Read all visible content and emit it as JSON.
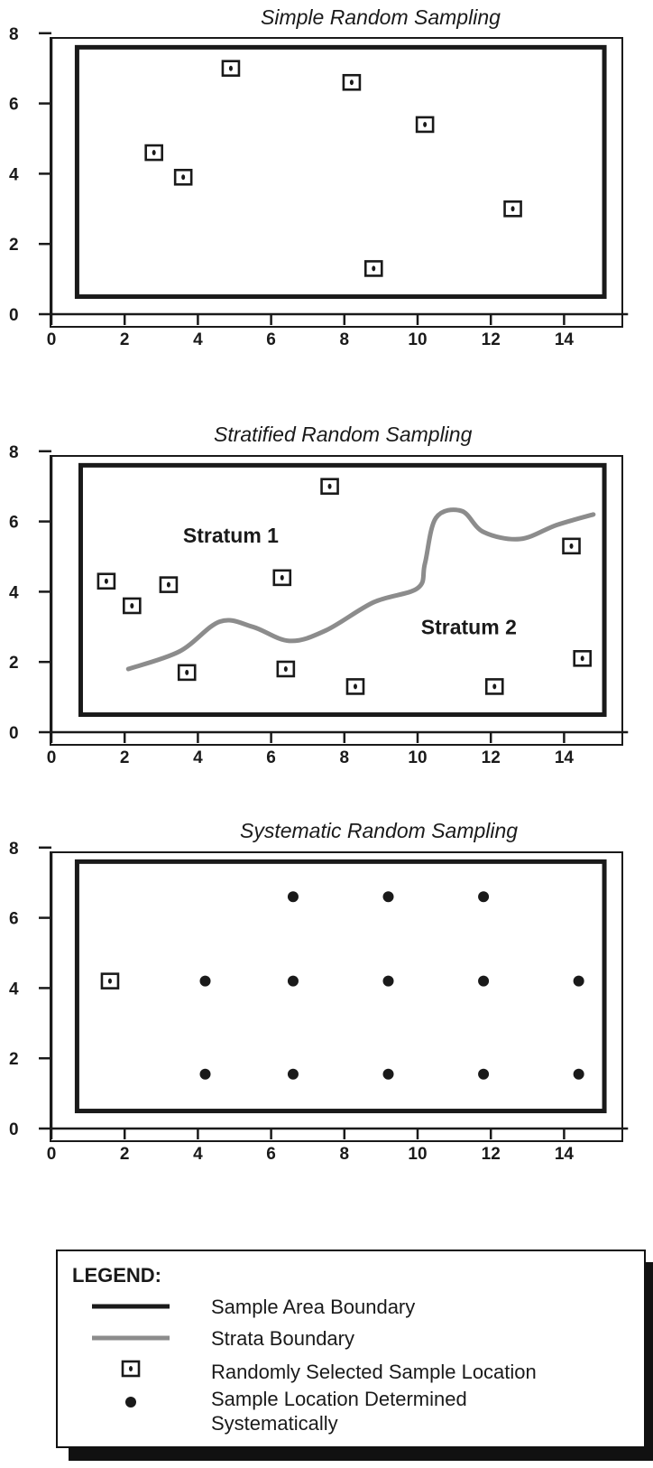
{
  "chart_data": [
    {
      "type": "scatter",
      "title": "Simple Random Sampling",
      "xlim": [
        0,
        15.5
      ],
      "ylim": [
        0,
        8
      ],
      "xticks": [
        0,
        2,
        4,
        6,
        8,
        10,
        12,
        14
      ],
      "yticks": [
        0,
        2,
        4,
        6,
        8
      ],
      "sample_area": {
        "x": [
          0.7,
          15.1
        ],
        "y": [
          0.5,
          7.6
        ]
      },
      "random_points": [
        [
          2.8,
          4.6
        ],
        [
          3.6,
          3.9
        ],
        [
          4.9,
          7.0
        ],
        [
          8.2,
          6.6
        ],
        [
          10.2,
          5.4
        ],
        [
          12.6,
          3.0
        ],
        [
          8.8,
          1.3
        ]
      ],
      "systematic_points": [],
      "strata_boundary": [],
      "labels": []
    },
    {
      "type": "scatter",
      "title": "Stratified Random Sampling",
      "xlim": [
        0,
        15.5
      ],
      "ylim": [
        0,
        8
      ],
      "xticks": [
        0,
        2,
        4,
        6,
        8,
        10,
        12,
        14
      ],
      "yticks": [
        0,
        2,
        4,
        6,
        8
      ],
      "sample_area": {
        "x": [
          0.8,
          15.1
        ],
        "y": [
          0.5,
          7.6
        ]
      },
      "random_points": [
        [
          1.5,
          4.3
        ],
        [
          2.2,
          3.6
        ],
        [
          3.2,
          4.2
        ],
        [
          6.3,
          4.4
        ],
        [
          7.6,
          7.0
        ],
        [
          14.2,
          5.3
        ],
        [
          3.7,
          1.7
        ],
        [
          6.4,
          1.8
        ],
        [
          8.3,
          1.3
        ],
        [
          12.1,
          1.3
        ],
        [
          14.5,
          2.1
        ]
      ],
      "systematic_points": [],
      "strata_boundary": [
        [
          2.1,
          1.8
        ],
        [
          3.5,
          2.3
        ],
        [
          4.6,
          3.15
        ],
        [
          5.5,
          3.0
        ],
        [
          6.5,
          2.6
        ],
        [
          7.5,
          2.9
        ],
        [
          8.8,
          3.7
        ],
        [
          10.0,
          4.1
        ],
        [
          10.2,
          4.8
        ],
        [
          10.5,
          6.1
        ],
        [
          11.2,
          6.3
        ],
        [
          11.8,
          5.7
        ],
        [
          12.8,
          5.5
        ],
        [
          13.8,
          5.9
        ],
        [
          14.8,
          6.2
        ]
      ],
      "labels": [
        {
          "text": "Stratum 1",
          "x": 4.9,
          "y": 5.6
        },
        {
          "text": "Stratum 2",
          "x": 11.4,
          "y": 3.0
        }
      ]
    },
    {
      "type": "scatter",
      "title": "Systematic Random Sampling",
      "xlim": [
        0,
        15.5
      ],
      "ylim": [
        0,
        8
      ],
      "xticks": [
        0,
        2,
        4,
        6,
        8,
        10,
        12,
        14
      ],
      "yticks": [
        0,
        2,
        4,
        6,
        8
      ],
      "sample_area": {
        "x": [
          0.7,
          15.1
        ],
        "y": [
          0.5,
          7.6
        ]
      },
      "random_points": [
        [
          1.6,
          4.2
        ]
      ],
      "systematic_points": [
        [
          6.6,
          6.6
        ],
        [
          9.2,
          6.6
        ],
        [
          11.8,
          6.6
        ],
        [
          4.2,
          4.2
        ],
        [
          6.6,
          4.2
        ],
        [
          9.2,
          4.2
        ],
        [
          11.8,
          4.2
        ],
        [
          14.4,
          4.2
        ],
        [
          4.2,
          1.55
        ],
        [
          6.6,
          1.55
        ],
        [
          9.2,
          1.55
        ],
        [
          11.8,
          1.55
        ],
        [
          14.4,
          1.55
        ]
      ],
      "strata_boundary": [],
      "labels": []
    }
  ],
  "legend": {
    "title": "LEGEND:",
    "items": [
      {
        "symbol": "sample-area-boundary",
        "text": [
          "Sample Area Boundary"
        ]
      },
      {
        "symbol": "strata-boundary",
        "text": [
          "Strata Boundary"
        ]
      },
      {
        "symbol": "random-sample",
        "text": [
          "Randomly Selected Sample Location"
        ]
      },
      {
        "symbol": "systematic-sample",
        "text": [
          "Sample Location Determined",
          "Systematically"
        ]
      }
    ]
  },
  "colors": {
    "axis": "#1a1a1a",
    "boundary": "#1a1a1a",
    "strata": "#8c8c8c",
    "marker": "#1a1a1a"
  }
}
